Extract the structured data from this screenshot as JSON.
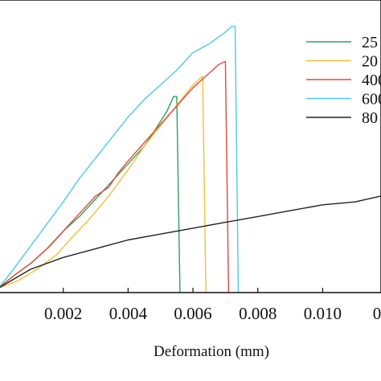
{
  "chart_data": {
    "type": "line",
    "title": "",
    "xlabel": "Deformation (mm)",
    "ylabel": "",
    "xlim": [
      0.0,
      0.0118
    ],
    "ylim": [
      0,
      1
    ],
    "grid": false,
    "legend_placement": "top-right",
    "x_ticks": [
      "0.002",
      "0.004",
      "0.006",
      "0.008",
      "0.010",
      "0.01"
    ],
    "series": [
      {
        "name": "25",
        "color": "#2ca25f",
        "points": [
          [
            0.0,
            0.015
          ],
          [
            0.0005,
            0.06
          ],
          [
            0.001,
            0.1
          ],
          [
            0.0015,
            0.15
          ],
          [
            0.002,
            0.21
          ],
          [
            0.0025,
            0.26
          ],
          [
            0.003,
            0.32
          ],
          [
            0.0035,
            0.38
          ],
          [
            0.004,
            0.44
          ],
          [
            0.0045,
            0.5
          ],
          [
            0.0048,
            0.55
          ],
          [
            0.0052,
            0.62
          ],
          [
            0.0054,
            0.67
          ],
          [
            0.0055,
            0.67
          ],
          [
            0.0056,
            0.0
          ]
        ]
      },
      {
        "name": "20",
        "color": "#f2c037",
        "points": [
          [
            0.0,
            0.015
          ],
          [
            0.0006,
            0.04
          ],
          [
            0.0012,
            0.08
          ],
          [
            0.0018,
            0.13
          ],
          [
            0.0022,
            0.18
          ],
          [
            0.0028,
            0.25
          ],
          [
            0.0034,
            0.33
          ],
          [
            0.004,
            0.42
          ],
          [
            0.0045,
            0.5
          ],
          [
            0.005,
            0.57
          ],
          [
            0.0055,
            0.64
          ],
          [
            0.006,
            0.71
          ],
          [
            0.0063,
            0.74
          ],
          [
            0.0064,
            0.0
          ]
        ]
      },
      {
        "name": "400",
        "color": "#e8453c",
        "points": [
          [
            0.0,
            0.015
          ],
          [
            0.0005,
            0.06
          ],
          [
            0.001,
            0.1
          ],
          [
            0.0016,
            0.16
          ],
          [
            0.002,
            0.21
          ],
          [
            0.0025,
            0.27
          ],
          [
            0.003,
            0.33
          ],
          [
            0.0034,
            0.36
          ],
          [
            0.0037,
            0.41
          ],
          [
            0.004,
            0.45
          ],
          [
            0.0044,
            0.5
          ],
          [
            0.0048,
            0.55
          ],
          [
            0.0052,
            0.6
          ],
          [
            0.0056,
            0.65
          ],
          [
            0.006,
            0.7
          ],
          [
            0.0064,
            0.74
          ],
          [
            0.0068,
            0.78
          ],
          [
            0.007,
            0.79
          ],
          [
            0.0071,
            0.0
          ]
        ]
      },
      {
        "name": "600",
        "color": "#4dc9ec",
        "points": [
          [
            0.0,
            0.015
          ],
          [
            0.0004,
            0.07
          ],
          [
            0.0008,
            0.13
          ],
          [
            0.0012,
            0.19
          ],
          [
            0.0016,
            0.25
          ],
          [
            0.002,
            0.31
          ],
          [
            0.0025,
            0.39
          ],
          [
            0.003,
            0.46
          ],
          [
            0.0035,
            0.53
          ],
          [
            0.004,
            0.6
          ],
          [
            0.0045,
            0.66
          ],
          [
            0.005,
            0.71
          ],
          [
            0.0055,
            0.76
          ],
          [
            0.006,
            0.82
          ],
          [
            0.0065,
            0.85
          ],
          [
            0.007,
            0.89
          ],
          [
            0.0072,
            0.91
          ],
          [
            0.0073,
            0.91
          ],
          [
            0.0074,
            0.0
          ]
        ]
      },
      {
        "name": "80",
        "color": "#222222",
        "points": [
          [
            0.0,
            0.015
          ],
          [
            0.001,
            0.08
          ],
          [
            0.002,
            0.12
          ],
          [
            0.003,
            0.15
          ],
          [
            0.004,
            0.18
          ],
          [
            0.005,
            0.2
          ],
          [
            0.006,
            0.22
          ],
          [
            0.007,
            0.24
          ],
          [
            0.008,
            0.26
          ],
          [
            0.009,
            0.28
          ],
          [
            0.01,
            0.3
          ],
          [
            0.011,
            0.31
          ],
          [
            0.0118,
            0.33
          ]
        ]
      }
    ]
  }
}
